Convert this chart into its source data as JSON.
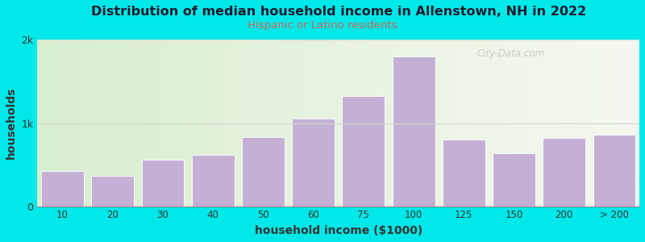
{
  "title": "Distribution of median household income in Allenstown, NH in 2022",
  "subtitle": "Hispanic or Latino residents",
  "xlabel": "household income ($1000)",
  "ylabel": "households",
  "bg_outer": "#00e8e8",
  "bar_color": "#c4b0d5",
  "categories": [
    "10",
    "20",
    "30",
    "40",
    "50",
    "60",
    "75",
    "100",
    "125",
    "150",
    "200",
    "> 200"
  ],
  "values": [
    420,
    370,
    560,
    620,
    830,
    1050,
    1330,
    1800,
    800,
    640,
    820,
    860
  ],
  "ylim": [
    0,
    2000
  ],
  "ytick_labels": [
    "0",
    "1k",
    "2k"
  ],
  "watermark": "City-Data.com",
  "title_color": "#1a1a2e",
  "subtitle_color": "#cc6655",
  "grid_color": "#d0d8c8",
  "bg_left_color": "#d8eed0",
  "bg_right_color": "#f5f8f0"
}
